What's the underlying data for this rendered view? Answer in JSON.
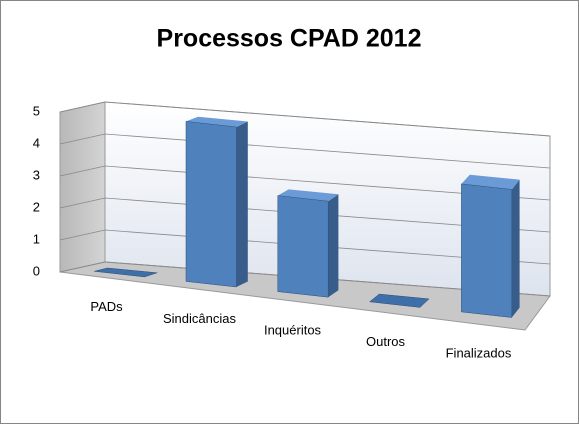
{
  "chart_data": {
    "type": "bar",
    "title": "Processos CPAD 2012",
    "categories": [
      "PADs",
      "Sindicâncias",
      "Inquéritos",
      "Outros",
      "Finalizados"
    ],
    "values": [
      0,
      5,
      3,
      0,
      4
    ],
    "color": "#4f81bd",
    "ylim": [
      0,
      5
    ],
    "yticks": [
      0,
      1,
      2,
      3,
      4,
      5
    ],
    "grid": true
  }
}
